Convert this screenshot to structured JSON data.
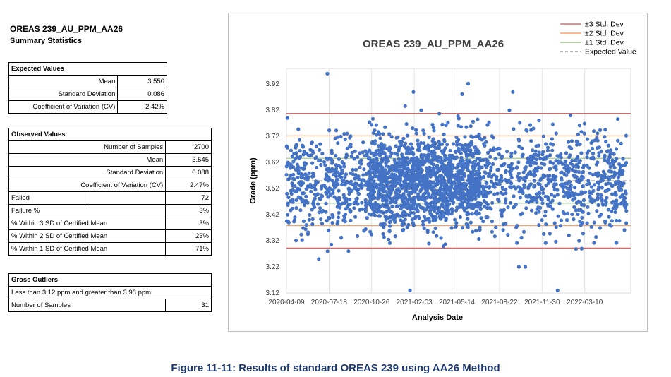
{
  "header": {
    "title": "OREAS 239_AU_PPM_AA26",
    "subtitle": "Summary Statistics"
  },
  "expected": {
    "heading": "Expected Values",
    "rows": [
      {
        "label": "Mean",
        "value": "3.550"
      },
      {
        "label": "Standard Deviation",
        "value": "0.086"
      },
      {
        "label": "Coefficient of Variation (CV)",
        "value": "2.42%"
      }
    ]
  },
  "observed": {
    "heading": "Observed Values",
    "rows": [
      {
        "label": "Number of Samples",
        "value": "2700"
      },
      {
        "label": "Mean",
        "value": "3.545"
      },
      {
        "label": "Standard Deviation",
        "value": "0.088"
      },
      {
        "label": "Coefficient of Variation (CV)",
        "value": "2.47%"
      }
    ],
    "left_rows": [
      {
        "label": "Failed",
        "value": "72"
      },
      {
        "label": "Failure %",
        "value": "3%"
      },
      {
        "label": "% Within 3 SD of Certified Mean",
        "value": "3%"
      },
      {
        "label": "% Within 2 SD of Certified Mean",
        "value": "23%"
      },
      {
        "label": "% Within 1 SD of Certified Mean",
        "value": "71%"
      }
    ]
  },
  "outliers": {
    "heading": "Gross Outliers",
    "range_text": "Less than 3.12 ppm and greater than 3.98 ppm",
    "count_label": "Number of Samples",
    "count_value": "31"
  },
  "caption": "Figure 11-11: Results of standard OREAS 239 using AA26 Method",
  "chart_data": {
    "type": "scatter",
    "title": "OREAS 239_AU_PPM_AA26",
    "xlabel": "Analysis Date",
    "ylabel": "Grade (ppm)",
    "x_ticks": [
      "2020-04-09",
      "2020-07-18",
      "2020-10-26",
      "2021-02-03",
      "2021-05-14",
      "2021-08-22",
      "2021-11-30",
      "2022-03-10"
    ],
    "y_ticks": [
      "3.12",
      "3.22",
      "3.32",
      "3.42",
      "3.52",
      "3.62",
      "3.72",
      "3.82",
      "3.92"
    ],
    "xlim_days": [
      0,
      800
    ],
    "ylim": [
      3.12,
      3.98
    ],
    "reference_lines": [
      {
        "name": "+3 Std. Dev.",
        "value": 3.808,
        "color": "#e06666"
      },
      {
        "name": "-3 Std. Dev.",
        "value": 3.292,
        "color": "#e06666"
      },
      {
        "name": "+2 Std. Dev.",
        "value": 3.722,
        "color": "#f2a36b"
      },
      {
        "name": "-2 Std. Dev.",
        "value": 3.378,
        "color": "#f2a36b"
      },
      {
        "name": "+1 Std. Dev.",
        "value": 3.636,
        "color": "#93c47d"
      },
      {
        "name": "-1 Std. Dev.",
        "value": 3.464,
        "color": "#93c47d"
      },
      {
        "name": "Expected Value",
        "value": 3.55,
        "color": "#a6a6a6"
      }
    ],
    "legend": [
      "±3 Std. Dev.",
      "±2 Std. Dev.",
      "±1 Std. Dev.",
      "Expected Value"
    ],
    "legend_colors": [
      "#e06666",
      "#f2a36b",
      "#93c47d",
      "#a6a6a6"
    ],
    "legend_position": "top-right",
    "point_color": "#4472c4",
    "series": [
      {
        "name": "Samples",
        "n": 2700,
        "mean": 3.545,
        "sd": 0.088,
        "x_start_day": 0,
        "x_end_day": 790
      }
    ],
    "outlier_points": [
      {
        "day": 95,
        "value": 3.96
      },
      {
        "day": 295,
        "value": 3.89
      },
      {
        "day": 313,
        "value": 3.82
      },
      {
        "day": 526,
        "value": 3.89
      },
      {
        "day": 518,
        "value": 3.82
      },
      {
        "day": 660,
        "value": 3.8
      },
      {
        "day": 630,
        "value": 3.13
      },
      {
        "day": 287,
        "value": 3.13
      },
      {
        "day": 75,
        "value": 3.25
      },
      {
        "day": 540,
        "value": 3.22
      },
      {
        "day": 555,
        "value": 3.22
      },
      {
        "day": 686,
        "value": 3.29
      }
    ]
  }
}
